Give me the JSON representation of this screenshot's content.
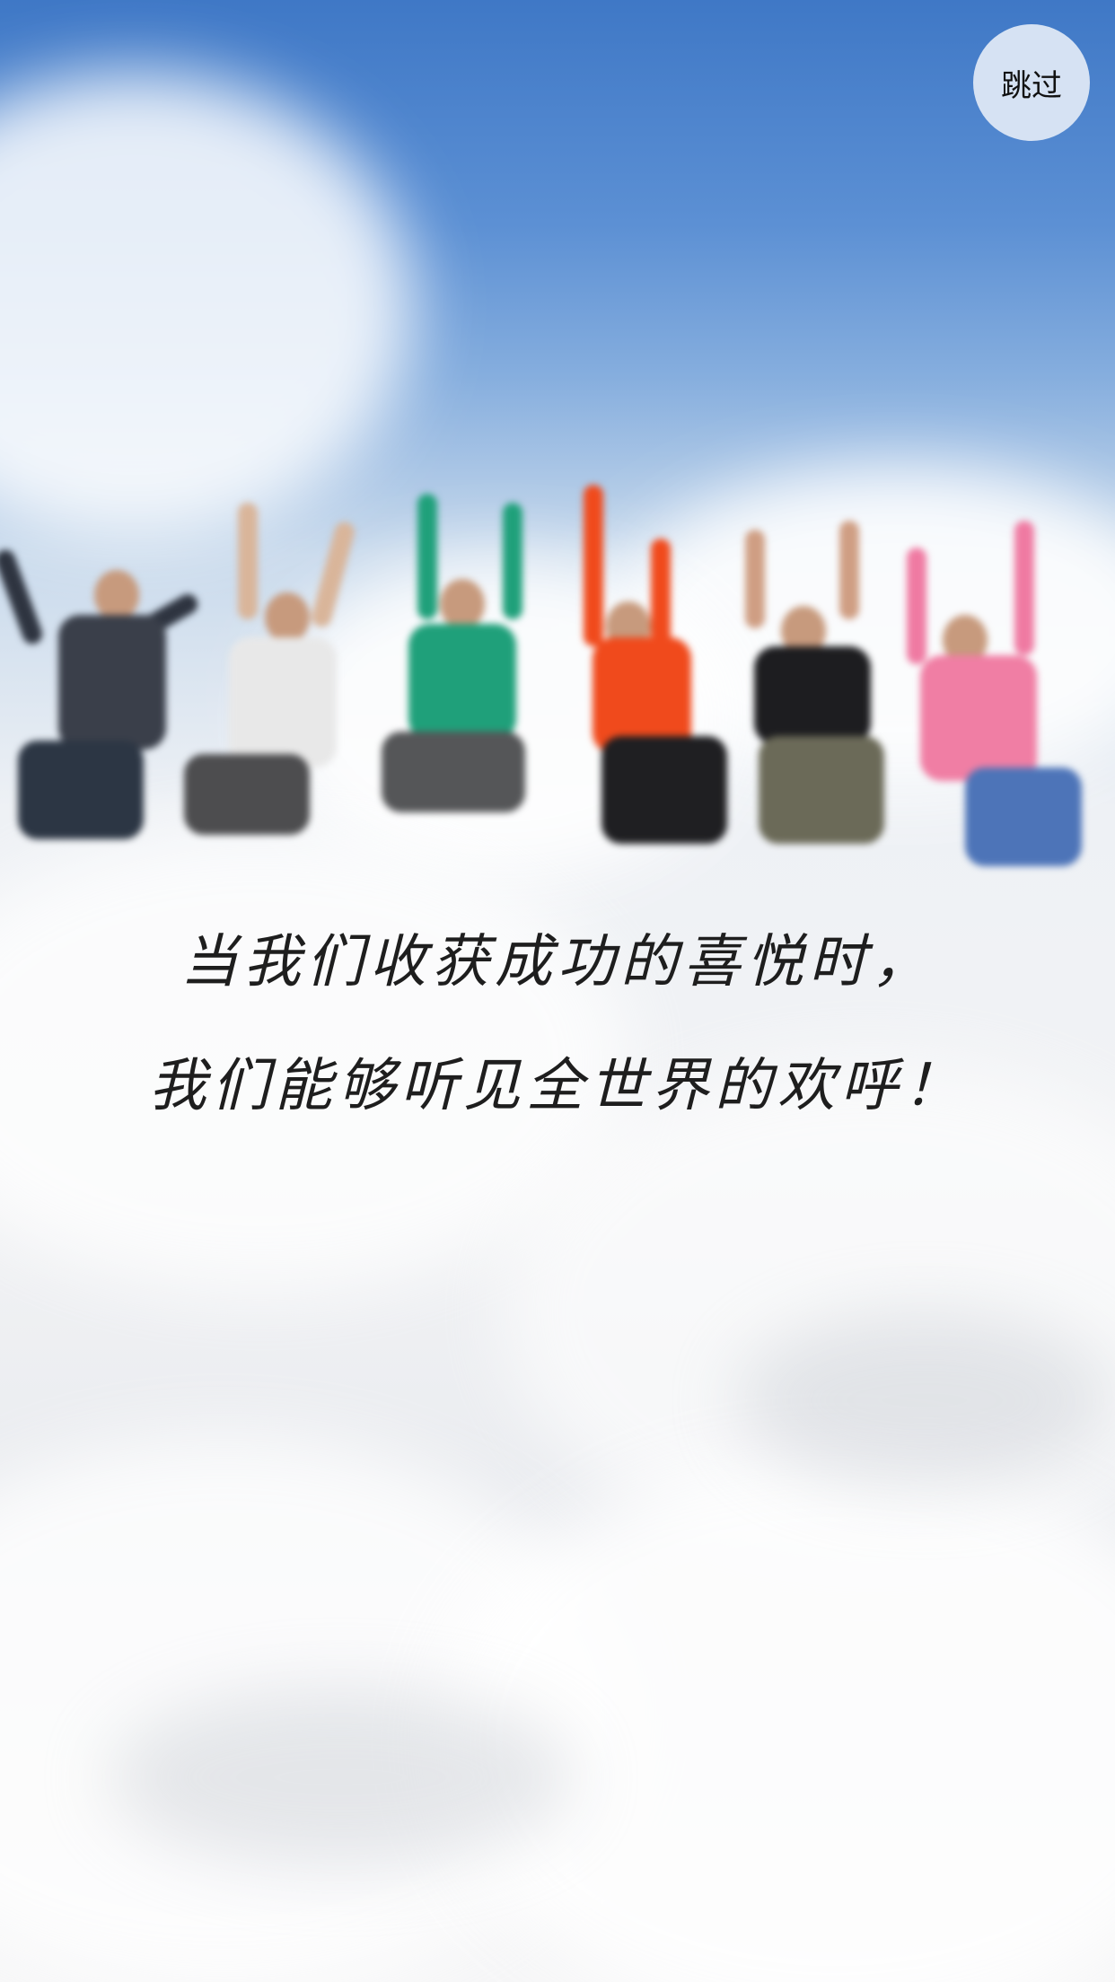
{
  "splash": {
    "skip_label": "跳过",
    "caption_line1": "当我们收获成功的喜悦时，",
    "caption_line2": "我们能够听见全世界的欢呼！",
    "background": "sky-clouds-jumping-people-photo"
  },
  "colors": {
    "sky_top": "#3f78c6",
    "skip_button_bg": "#d6e2f3",
    "caption_text": "#1e1e1e"
  }
}
